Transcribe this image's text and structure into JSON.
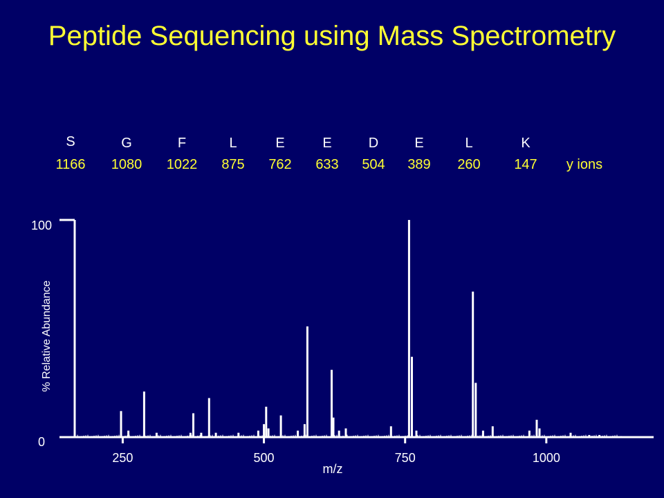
{
  "slide": {
    "title": "Peptide Sequencing using Mass Spectrometry"
  },
  "sequence": {
    "residues": [
      "S",
      "G",
      "F",
      "L",
      "E",
      "E",
      "D",
      "E",
      "L",
      "K"
    ],
    "y_ions": [
      "1166",
      "1080",
      "1022",
      "875",
      "762",
      "633",
      "504",
      "389",
      "260",
      "147"
    ],
    "series_label": "y ions"
  },
  "colors": {
    "background": "#000066",
    "title": "#ffff33",
    "ion_labels": "#ffff33",
    "residue_labels": "#ffffff",
    "axes": "#ffffff",
    "peaks": "#ffffff"
  },
  "chart_data": {
    "type": "bar",
    "title": "",
    "xlabel": "m/z",
    "ylabel": "% Relative Abundance",
    "xlim": [
      165,
      1190
    ],
    "ylim": [
      0,
      100
    ],
    "xticks": [
      250,
      500,
      750,
      1000
    ],
    "yticks": [
      0,
      100
    ],
    "grid": false,
    "legend": "none",
    "peaks": [
      {
        "mz": 247,
        "rel": 12
      },
      {
        "mz": 260,
        "rel": 3
      },
      {
        "mz": 288,
        "rel": 21
      },
      {
        "mz": 310,
        "rel": 2
      },
      {
        "mz": 370,
        "rel": 2
      },
      {
        "mz": 375,
        "rel": 11
      },
      {
        "mz": 389,
        "rel": 2
      },
      {
        "mz": 403,
        "rel": 18
      },
      {
        "mz": 415,
        "rel": 2
      },
      {
        "mz": 455,
        "rel": 2
      },
      {
        "mz": 490,
        "rel": 3
      },
      {
        "mz": 500,
        "rel": 6
      },
      {
        "mz": 504,
        "rel": 14
      },
      {
        "mz": 508,
        "rel": 4
      },
      {
        "mz": 530,
        "rel": 10
      },
      {
        "mz": 560,
        "rel": 3
      },
      {
        "mz": 572,
        "rel": 6
      },
      {
        "mz": 577,
        "rel": 51
      },
      {
        "mz": 620,
        "rel": 31
      },
      {
        "mz": 623,
        "rel": 9
      },
      {
        "mz": 633,
        "rel": 3
      },
      {
        "mz": 645,
        "rel": 4
      },
      {
        "mz": 725,
        "rel": 5
      },
      {
        "mz": 757,
        "rel": 100
      },
      {
        "mz": 762,
        "rel": 37
      },
      {
        "mz": 770,
        "rel": 3
      },
      {
        "mz": 870,
        "rel": 67
      },
      {
        "mz": 875,
        "rel": 25
      },
      {
        "mz": 888,
        "rel": 3
      },
      {
        "mz": 905,
        "rel": 5
      },
      {
        "mz": 970,
        "rel": 3
      },
      {
        "mz": 983,
        "rel": 8
      },
      {
        "mz": 988,
        "rel": 4
      },
      {
        "mz": 1043,
        "rel": 2
      },
      {
        "mz": 1076,
        "rel": 1
      },
      {
        "mz": 1094,
        "rel": 1
      }
    ]
  }
}
